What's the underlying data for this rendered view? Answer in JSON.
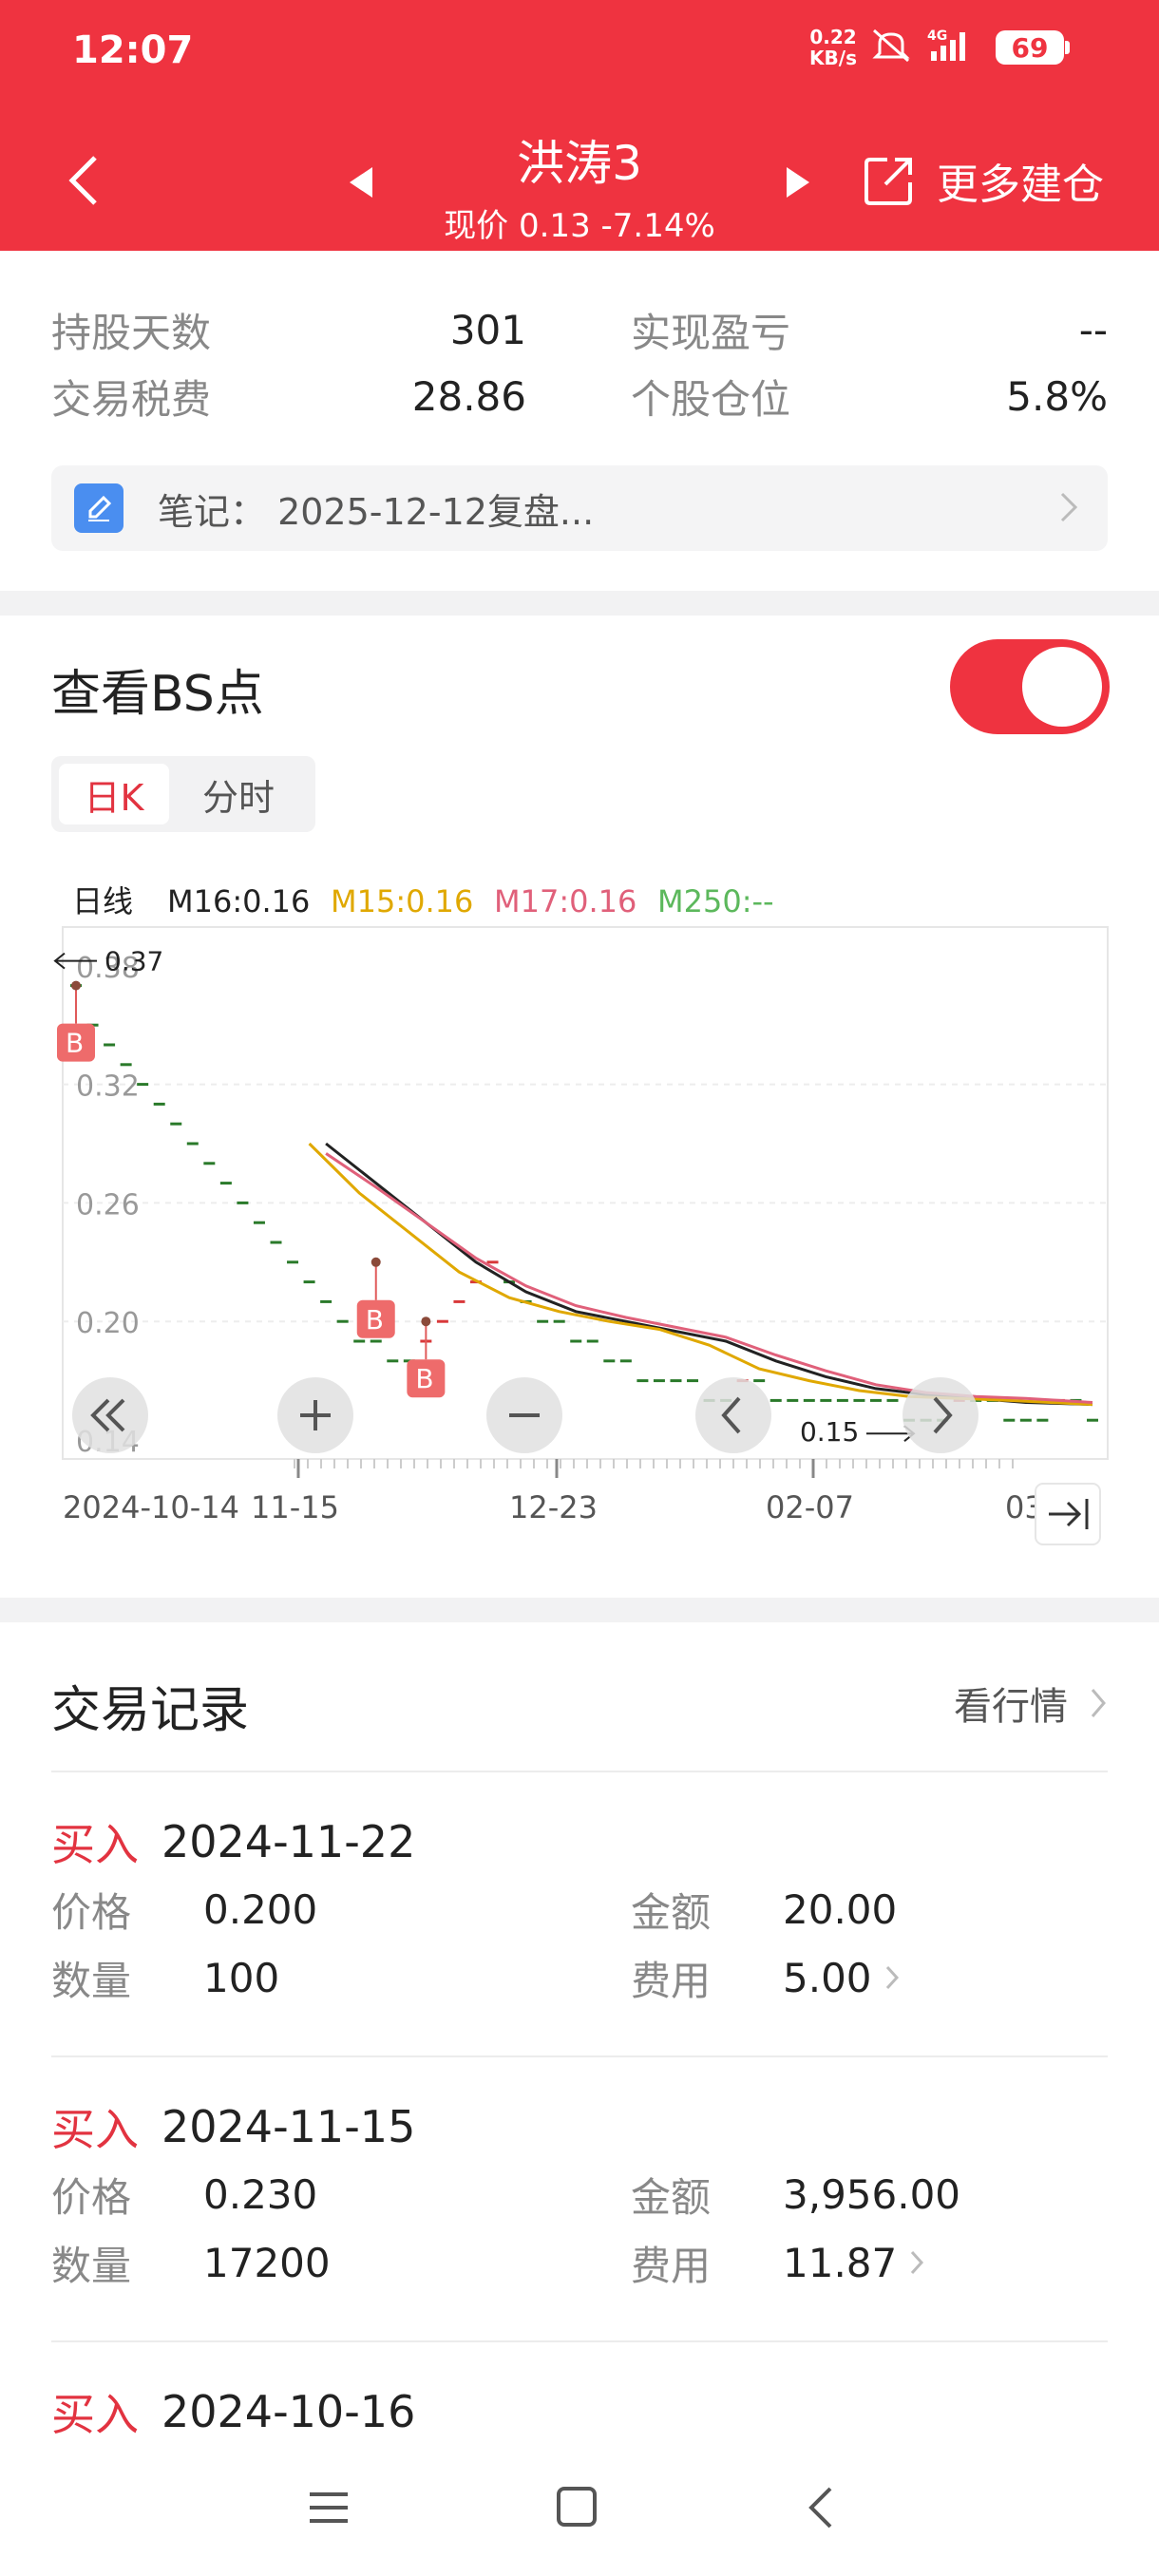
{
  "status_bar": {
    "time": "12:07",
    "net_speed_value": "0.22",
    "net_speed_unit": "KB/s",
    "signal_label": "4G",
    "battery": "69"
  },
  "header": {
    "title": "洪涛3",
    "subtitle": "现价 0.13 -7.14%",
    "more_label": "更多建仓"
  },
  "stats": [
    {
      "label": "持股天数",
      "value": "301",
      "label2": "实现盈亏",
      "value2": "--"
    },
    {
      "label": "交易税费",
      "value": "28.86",
      "label2": "个股仓位",
      "value2": "5.8%"
    }
  ],
  "note": {
    "text": "笔记：  2025-12-12复盘..."
  },
  "bs_section": {
    "title": "查看BS点",
    "toggle_on": true,
    "tabs": [
      {
        "label": "日K",
        "active": true
      },
      {
        "label": "分时",
        "active": false
      }
    ]
  },
  "chart_data": {
    "type": "line",
    "legend": [
      {
        "label": "日线",
        "color": "#222222"
      },
      {
        "label": "M16:0.16",
        "color": "#222222"
      },
      {
        "label": "M15:0.16",
        "color": "#e0a800"
      },
      {
        "label": "M17:0.16",
        "color": "#e0607a"
      },
      {
        "label": "M250:--",
        "color": "#5cb85c"
      }
    ],
    "y_ticks": [
      "0.38",
      "0.32",
      "0.26",
      "0.20",
      "0.14"
    ],
    "x_ticks": [
      "2024-10-14",
      "11-15",
      "12-23",
      "02-07",
      "03"
    ],
    "ylim": [
      0.14,
      0.39
    ],
    "max_label": "0.37",
    "min_label": "0.15",
    "buy_markers": [
      {
        "label": "B",
        "x": 0,
        "y": 0.37
      },
      {
        "label": "B",
        "x": 18,
        "y": 0.23
      },
      {
        "label": "B",
        "x": 21,
        "y": 0.2
      }
    ],
    "price_ticks": [
      [
        0,
        0.37
      ],
      [
        1,
        0.35
      ],
      [
        2,
        0.34
      ],
      [
        3,
        0.33
      ],
      [
        4,
        0.32
      ],
      [
        5,
        0.31
      ],
      [
        6,
        0.3
      ],
      [
        7,
        0.29
      ],
      [
        8,
        0.28
      ],
      [
        9,
        0.27
      ],
      [
        10,
        0.26
      ],
      [
        11,
        0.25
      ],
      [
        12,
        0.24
      ],
      [
        13,
        0.23
      ],
      [
        14,
        0.22
      ],
      [
        15,
        0.21
      ],
      [
        16,
        0.2
      ],
      [
        17,
        0.19
      ],
      [
        18,
        0.19
      ],
      [
        19,
        0.18
      ],
      [
        20,
        0.18
      ],
      [
        21,
        0.19
      ],
      [
        22,
        0.2
      ],
      [
        23,
        0.21
      ],
      [
        24,
        0.22
      ],
      [
        25,
        0.23
      ],
      [
        26,
        0.22
      ],
      [
        27,
        0.21
      ],
      [
        28,
        0.2
      ],
      [
        29,
        0.2
      ],
      [
        30,
        0.19
      ],
      [
        31,
        0.19
      ],
      [
        32,
        0.18
      ],
      [
        33,
        0.18
      ],
      [
        34,
        0.17
      ],
      [
        35,
        0.17
      ],
      [
        36,
        0.17
      ],
      [
        37,
        0.17
      ],
      [
        38,
        0.16
      ],
      [
        39,
        0.16
      ],
      [
        40,
        0.17
      ],
      [
        41,
        0.17
      ],
      [
        42,
        0.16
      ],
      [
        43,
        0.16
      ],
      [
        44,
        0.16
      ],
      [
        45,
        0.16
      ],
      [
        46,
        0.16
      ],
      [
        47,
        0.16
      ],
      [
        48,
        0.16
      ],
      [
        49,
        0.16
      ],
      [
        50,
        0.15
      ],
      [
        51,
        0.15
      ],
      [
        52,
        0.15
      ],
      [
        53,
        0.16
      ],
      [
        54,
        0.16
      ],
      [
        55,
        0.16
      ],
      [
        56,
        0.15
      ],
      [
        57,
        0.15
      ],
      [
        58,
        0.15
      ],
      [
        59,
        0.16
      ],
      [
        60,
        0.16
      ],
      [
        61,
        0.15
      ]
    ],
    "series": [
      {
        "name": "M16",
        "color": "#222222",
        "values": [
          [
            15,
            0.29
          ],
          [
            18,
            0.27
          ],
          [
            21,
            0.25
          ],
          [
            24,
            0.23
          ],
          [
            27,
            0.215
          ],
          [
            30,
            0.205
          ],
          [
            33,
            0.2
          ],
          [
            36,
            0.195
          ],
          [
            39,
            0.19
          ],
          [
            42,
            0.18
          ],
          [
            45,
            0.172
          ],
          [
            48,
            0.166
          ],
          [
            51,
            0.163
          ],
          [
            54,
            0.161
          ],
          [
            57,
            0.159
          ],
          [
            61,
            0.158
          ]
        ]
      },
      {
        "name": "M15",
        "color": "#e0a800",
        "values": [
          [
            14,
            0.29
          ],
          [
            17,
            0.265
          ],
          [
            20,
            0.245
          ],
          [
            23,
            0.225
          ],
          [
            26,
            0.212
          ],
          [
            29,
            0.205
          ],
          [
            32,
            0.2
          ],
          [
            35,
            0.196
          ],
          [
            38,
            0.188
          ],
          [
            41,
            0.176
          ],
          [
            44,
            0.17
          ],
          [
            47,
            0.165
          ],
          [
            50,
            0.162
          ],
          [
            53,
            0.161
          ],
          [
            56,
            0.16
          ],
          [
            61,
            0.158
          ]
        ]
      },
      {
        "name": "M17",
        "color": "#e0607a",
        "values": [
          [
            15,
            0.285
          ],
          [
            18,
            0.268
          ],
          [
            21,
            0.25
          ],
          [
            24,
            0.232
          ],
          [
            27,
            0.218
          ],
          [
            30,
            0.208
          ],
          [
            33,
            0.202
          ],
          [
            36,
            0.197
          ],
          [
            39,
            0.192
          ],
          [
            42,
            0.183
          ],
          [
            45,
            0.175
          ],
          [
            48,
            0.168
          ],
          [
            51,
            0.164
          ],
          [
            54,
            0.162
          ],
          [
            57,
            0.161
          ],
          [
            61,
            0.159
          ]
        ]
      }
    ]
  },
  "records_section": {
    "title": "交易记录",
    "link_label": "看行情",
    "labels": {
      "price": "价格",
      "qty": "数量",
      "amount": "金额",
      "fee": "费用"
    },
    "records": [
      {
        "type": "买入",
        "date": "2024-11-22",
        "price": "0.200",
        "qty": "100",
        "amount": "20.00",
        "fee": "5.00"
      },
      {
        "type": "买入",
        "date": "2024-11-15",
        "price": "0.230",
        "qty": "17200",
        "amount": "3,956.00",
        "fee": "11.87"
      },
      {
        "type": "买入",
        "date": "2024-10-16"
      }
    ]
  }
}
